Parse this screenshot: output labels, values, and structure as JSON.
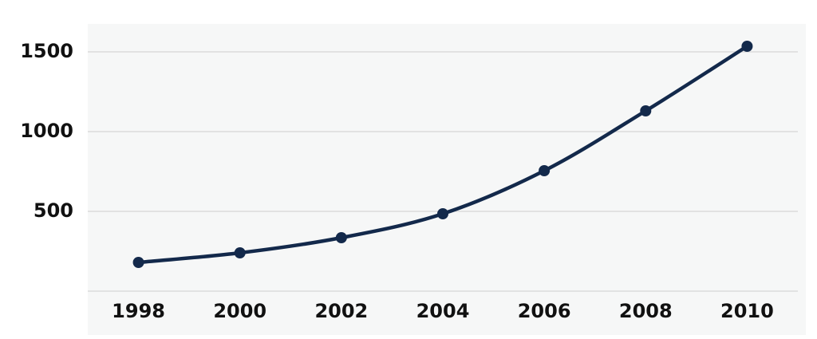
{
  "chart_data": {
    "type": "line",
    "x": [
      1998,
      2000,
      2002,
      2004,
      2006,
      2008,
      2010
    ],
    "series": [
      {
        "color": "#13294b",
        "values": [
          180,
          240,
          335,
          485,
          755,
          1130,
          1535
        ]
      }
    ],
    "xlim": [
      1997,
      2011
    ],
    "xticks": [
      1998,
      2000,
      2002,
      2004,
      2006,
      2008,
      2010
    ],
    "ylim": [
      0,
      1600
    ],
    "yticks": [
      500,
      1000,
      1500
    ],
    "grid": true
  }
}
